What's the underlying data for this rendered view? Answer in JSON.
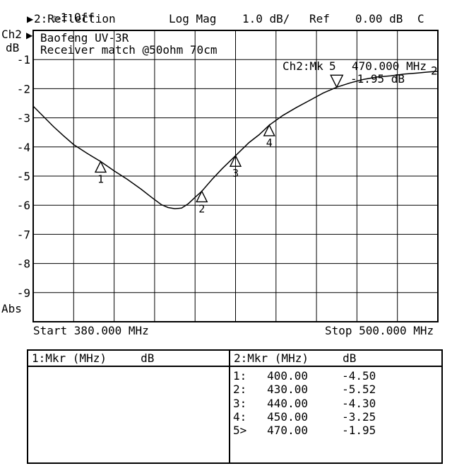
{
  "header": {
    "ch1_status": "1:Off",
    "ch2_status": "2:Reflection",
    "format": "Log Mag",
    "scale": "1.0 dB/",
    "ref_label": "Ref",
    "ref_value": "0.00 dB",
    "cal_flag": "C"
  },
  "axis": {
    "channel": "Ch2",
    "unit": "dB",
    "abs_label": "Abs",
    "start_label": "Start 380.000 MHz",
    "stop_label": "Stop 500.000 MHz"
  },
  "chart_data": {
    "type": "line",
    "title": "Baofeng UV-3R",
    "subtitle": "Receiver match @50ohm 70cm",
    "xlabel": "",
    "ylabel": "dB",
    "xlim": [
      380,
      500
    ],
    "ylim": [
      -10,
      0
    ],
    "x_divisions": 10,
    "y_divisions": 10,
    "grid": true,
    "y_ticks": [
      -1,
      -2,
      -3,
      -4,
      -5,
      -6,
      -7,
      -8,
      -9
    ],
    "trace_number_label": "2",
    "trace": [
      [
        380,
        -2.6
      ],
      [
        383,
        -2.95
      ],
      [
        386,
        -3.3
      ],
      [
        389,
        -3.62
      ],
      [
        392,
        -3.92
      ],
      [
        396,
        -4.22
      ],
      [
        400,
        -4.5
      ],
      [
        404,
        -4.82
      ],
      [
        408,
        -5.12
      ],
      [
        412,
        -5.45
      ],
      [
        415,
        -5.72
      ],
      [
        418,
        -5.98
      ],
      [
        420,
        -6.08
      ],
      [
        422,
        -6.12
      ],
      [
        424,
        -6.1
      ],
      [
        426,
        -5.95
      ],
      [
        428,
        -5.73
      ],
      [
        430,
        -5.52
      ],
      [
        433,
        -5.12
      ],
      [
        436,
        -4.75
      ],
      [
        440,
        -4.3
      ],
      [
        444,
        -3.85
      ],
      [
        447,
        -3.58
      ],
      [
        450,
        -3.25
      ],
      [
        454,
        -2.92
      ],
      [
        458,
        -2.65
      ],
      [
        462,
        -2.4
      ],
      [
        466,
        -2.15
      ],
      [
        470,
        -1.95
      ],
      [
        474,
        -1.8
      ],
      [
        478,
        -1.68
      ],
      [
        482,
        -1.6
      ],
      [
        486,
        -1.56
      ],
      [
        490,
        -1.5
      ],
      [
        494,
        -1.46
      ],
      [
        497,
        -1.43
      ],
      [
        500,
        -1.4
      ]
    ],
    "markers": [
      {
        "n": "1",
        "mhz": 400,
        "db": -4.5
      },
      {
        "n": "2",
        "mhz": 430,
        "db": -5.52
      },
      {
        "n": "3",
        "mhz": 440,
        "db": -4.3
      },
      {
        "n": "4",
        "mhz": 450,
        "db": -3.25
      },
      {
        "n": "5",
        "mhz": 470,
        "db": -1.95,
        "active": true
      }
    ]
  },
  "readout": {
    "prefix": "Ch2:Mk",
    "marker_number": "5",
    "frequency": "470.000 MHz",
    "value": "-1.95 dB"
  },
  "marker_table": {
    "left": {
      "header": "1:Mkr (MHz)     dB",
      "rows": []
    },
    "right": {
      "header": "2:Mkr (MHz)     dB",
      "rows": [
        {
          "label": "1:",
          "mhz": "400.00",
          "db": "-4.50"
        },
        {
          "label": "2:",
          "mhz": "430.00",
          "db": "-5.52"
        },
        {
          "label": "3:",
          "mhz": "440.00",
          "db": "-4.30"
        },
        {
          "label": "4:",
          "mhz": "450.00",
          "db": "-3.25"
        },
        {
          "label": "5>",
          "mhz": "470.00",
          "db": "-1.95"
        }
      ]
    }
  },
  "colors": {
    "foreground": "#000000",
    "background": "#ffffff"
  }
}
